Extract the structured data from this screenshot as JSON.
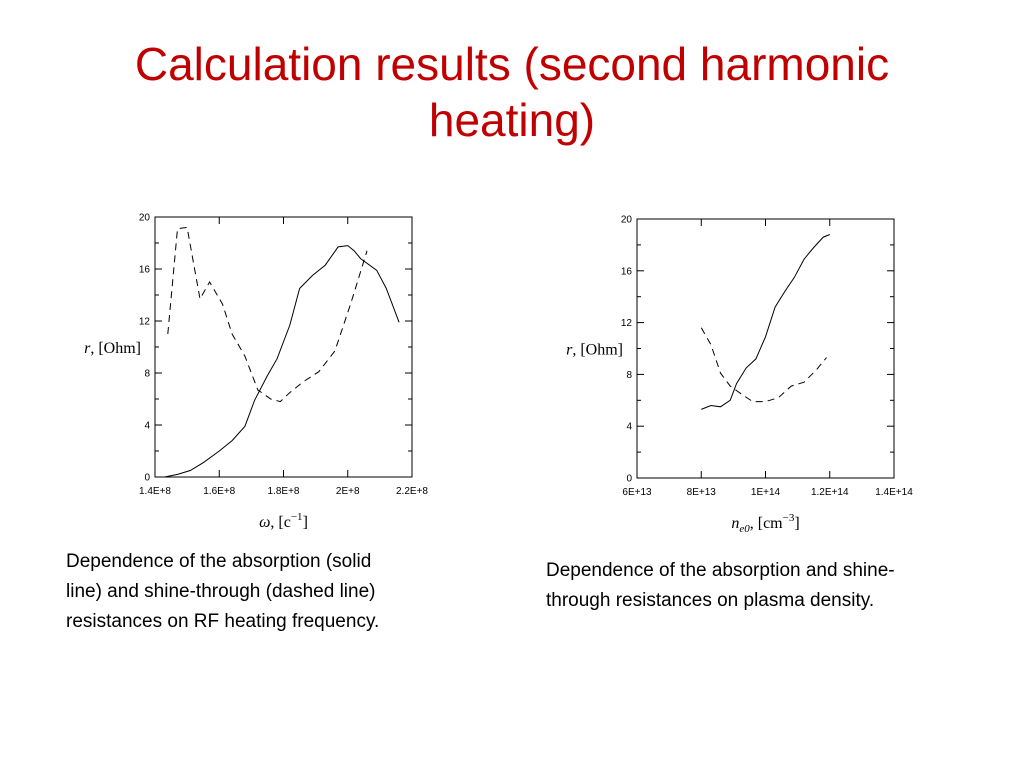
{
  "slide": {
    "title_lines": [
      "Calculation results (second harmonic",
      "heating)"
    ],
    "caption_left_lines": [
      "Dependence of the absorption (solid",
      "line) and shine-through (dashed line)",
      "resistances on RF heating frequency."
    ],
    "caption_right_lines": [
      "Dependence of the absorption and shine-",
      "through resistances on plasma density."
    ],
    "title_color": "#c00000"
  },
  "chart_data": [
    {
      "type": "line",
      "x_tick_labels": [
        "1.4E+8",
        "1.6E+8",
        "1.8E+8",
        "2E+8",
        "2.2E+8"
      ],
      "x_ticks": [
        140000000.0,
        160000000.0,
        180000000.0,
        200000000.0,
        220000000.0
      ],
      "y_tick_labels": [
        "0",
        "4",
        "8",
        "12",
        "16",
        "20"
      ],
      "y_ticks": [
        0,
        4,
        8,
        12,
        16,
        20
      ],
      "xlim": [
        140000000.0,
        220000000.0
      ],
      "ylim": [
        0,
        20
      ],
      "xlabel": {
        "symbol": "ω",
        "unit_pre": "[c",
        "unit_sup": "−1",
        "unit_post": "]"
      },
      "ylabel": {
        "symbol": "r",
        "unit": "[Ohm]"
      },
      "series": [
        {
          "style": "solid",
          "x": [
            143000000.0,
            147000000.0,
            151000000.0,
            155000000.0,
            160000000.0,
            164000000.0,
            168000000.0,
            171000000.0,
            175000000.0,
            178000000.0,
            182000000.0,
            185000000.0,
            189000000.0,
            193000000.0,
            197000000.0,
            200000000.0,
            202000000.0,
            204000000.0,
            209000000.0,
            212000000.0,
            216000000.0
          ],
          "y": [
            0,
            0.2,
            0.5,
            1.1,
            2.0,
            2.8,
            3.9,
            5.9,
            7.8,
            9.1,
            11.7,
            14.5,
            15.5,
            16.3,
            17.7,
            17.8,
            17.4,
            16.8,
            15.9,
            14.5,
            11.9
          ]
        },
        {
          "style": "dashed",
          "x": [
            144000000.0,
            147000000.0,
            150000000.0,
            154000000.0,
            157000000.0,
            161000000.0,
            164000000.0,
            168000000.0,
            172000000.0,
            176000000.0,
            179000000.0,
            182000000.0,
            186000000.0,
            191000000.0,
            196000000.0,
            201000000.0,
            206000000.0
          ],
          "y": [
            11.0,
            19.1,
            19.2,
            13.7,
            15.0,
            13.3,
            11.0,
            9.3,
            6.7,
            6.0,
            5.8,
            6.5,
            7.3,
            8.1,
            9.7,
            13.4,
            17.4
          ]
        }
      ]
    },
    {
      "type": "line",
      "x_tick_labels": [
        "6E+13",
        "8E+13",
        "1E+14",
        "1.2E+14",
        "1.4E+14"
      ],
      "x_ticks": [
        60000000000000.0,
        80000000000000.0,
        100000000000000.0,
        120000000000000.0,
        140000000000000.0
      ],
      "y_tick_labels": [
        "0",
        "4",
        "8",
        "12",
        "16",
        "20"
      ],
      "y_ticks": [
        0,
        4,
        8,
        12,
        16,
        20
      ],
      "xlim": [
        60000000000000.0,
        140000000000000.0
      ],
      "ylim": [
        0,
        20
      ],
      "xlabel": {
        "symbol": "n",
        "subscript": "e0",
        "unit_pre": "[cm",
        "unit_sup": "−3",
        "unit_post": "]"
      },
      "ylabel": {
        "symbol": "r",
        "unit": "[Ohm]"
      },
      "series": [
        {
          "style": "solid",
          "x": [
            80000000000000.0,
            83000000000000.0,
            86000000000000.0,
            89000000000000.0,
            91000000000000.0,
            94000000000000.0,
            97000000000000.0,
            100000000000000.0,
            103000000000000.0,
            106000000000000.0,
            109000000000000.0,
            112000000000000.0,
            115000000000000.0,
            118000000000000.0,
            120000000000000.0
          ],
          "y": [
            5.3,
            5.6,
            5.5,
            6.0,
            7.3,
            8.5,
            9.2,
            10.9,
            13.2,
            14.4,
            15.5,
            16.9,
            17.8,
            18.6,
            18.8
          ]
        },
        {
          "style": "dashed",
          "x": [
            80000000000000.0,
            83000000000000.0,
            86000000000000.0,
            89000000000000.0,
            93000000000000.0,
            96000000000000.0,
            100000000000000.0,
            104000000000000.0,
            108000000000000.0,
            112000000000000.0,
            116000000000000.0,
            119000000000000.0
          ],
          "y": [
            11.6,
            10.3,
            8.1,
            7.1,
            6.4,
            5.9,
            5.9,
            6.2,
            7.1,
            7.4,
            8.4,
            9.3
          ]
        }
      ]
    }
  ]
}
